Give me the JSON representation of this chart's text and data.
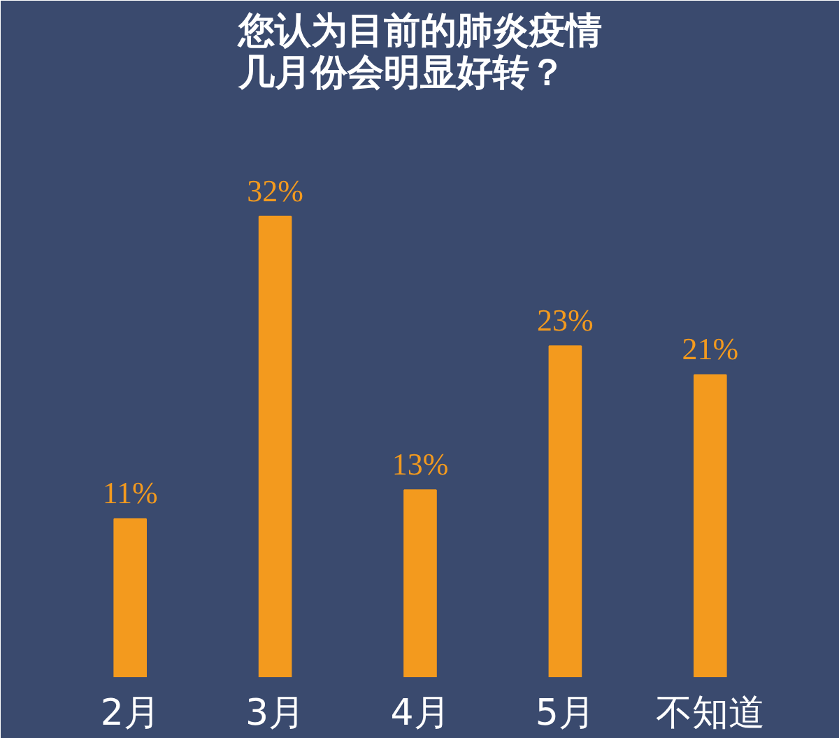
{
  "chart_data": {
    "type": "bar",
    "title": "您认为目前的肺炎疫情几月份会明显好转？",
    "categories": [
      "2月",
      "3月",
      "4月",
      "5月",
      "不知道"
    ],
    "values": [
      11,
      32,
      13,
      23,
      21
    ],
    "color": "#f39a1e",
    "value_labels": [
      "11%",
      "32%",
      "13%",
      "23%",
      "21%"
    ],
    "grid": false
  }
}
